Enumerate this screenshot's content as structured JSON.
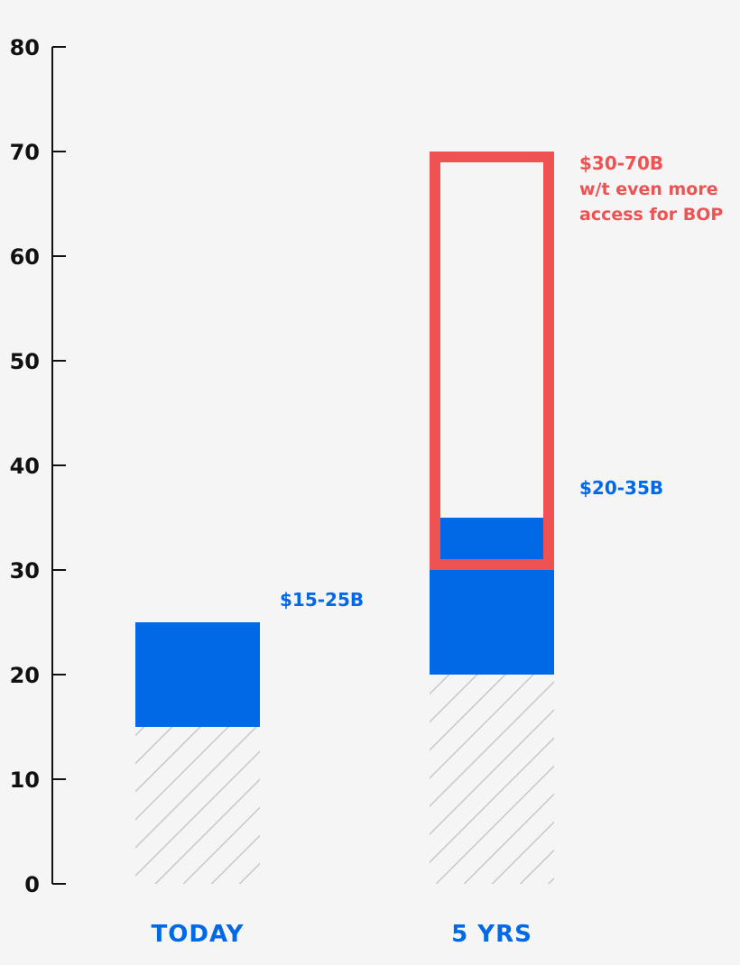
{
  "chart_data": {
    "type": "bar",
    "categories": [
      "TODAY",
      "5 YRS"
    ],
    "ylim": [
      0,
      80
    ],
    "yticks": [
      0,
      10,
      20,
      30,
      40,
      50,
      60,
      70,
      80
    ],
    "grid": false,
    "baseline_hatched": [
      15,
      20
    ],
    "blue_ranges": [
      {
        "category": "TODAY",
        "low": 15,
        "high": 25,
        "label": "$15-25B"
      },
      {
        "category": "5 YRS",
        "low": 20,
        "high": 35,
        "label": "$20-35B"
      }
    ],
    "red_range": {
      "category": "5 YRS",
      "low": 30,
      "high": 70,
      "label_lines": [
        "$30-70B",
        "w/t even more",
        "access for BOP"
      ]
    },
    "colors": {
      "blue": "#0168e6",
      "red": "#ef5252",
      "hatch": "#c8c8c8",
      "axis": "#111111",
      "background": "#f5f5f5"
    }
  }
}
